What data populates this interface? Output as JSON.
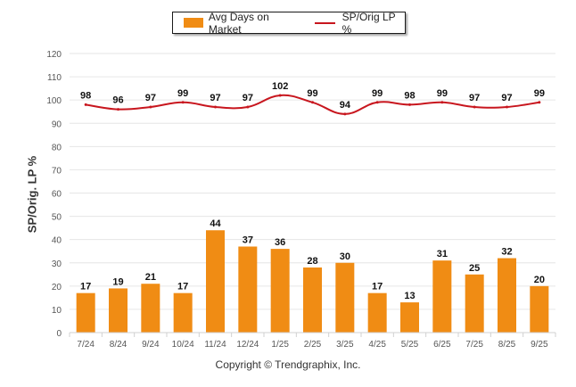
{
  "chart_data": {
    "type": "bar",
    "title": "",
    "xlabel": "",
    "ylabel": "SP/Orig. LP %",
    "ylim": [
      0,
      120
    ],
    "yticks": [
      0,
      10,
      20,
      30,
      40,
      50,
      60,
      70,
      80,
      90,
      100,
      110,
      120
    ],
    "grid": true,
    "legend_position": "top-center",
    "categories": [
      "7/24",
      "8/24",
      "9/24",
      "10/24",
      "11/24",
      "12/24",
      "1/25",
      "2/25",
      "3/25",
      "4/25",
      "5/25",
      "6/25",
      "7/25",
      "8/25",
      "9/25"
    ],
    "series": [
      {
        "name": "Avg Days on Market",
        "type": "bar",
        "color": "#f08c14",
        "values": [
          17,
          19,
          21,
          17,
          44,
          37,
          36,
          28,
          30,
          17,
          13,
          31,
          25,
          32,
          20
        ]
      },
      {
        "name": "SP/Orig LP %",
        "type": "line",
        "color": "#c8161e",
        "values": [
          98,
          96,
          97,
          99,
          97,
          97,
          102,
          99,
          94,
          99,
          98,
          99,
          97,
          97,
          99
        ]
      }
    ]
  },
  "legend": {
    "items": [
      "Avg Days on Market",
      "SP/Orig LP %"
    ]
  },
  "footer": {
    "copyright": "Copyright © Trendgraphix, Inc."
  }
}
